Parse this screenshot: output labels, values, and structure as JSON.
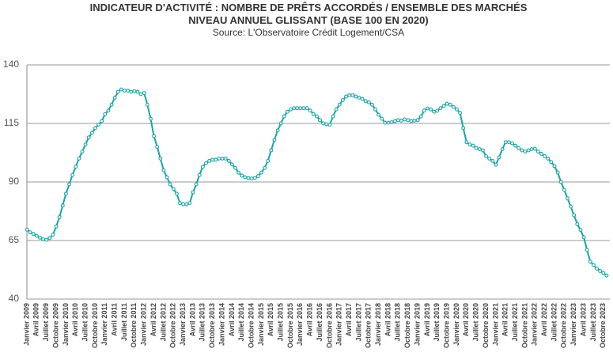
{
  "chart_data": {
    "type": "line",
    "title": "INDICATEUR D'ACTIVITÉ : NOMBRE DE PRÊTS ACCORDÉS / ENSEMBLE DES MARCHÉS",
    "subtitle": "NIVEAU ANNUEL GLISSANT (BASE 100 EN 2020)",
    "source": "Source: L'Observatoire Crédit Logement/CSA",
    "color": "#1aa5a5",
    "grid": true,
    "ylim": [
      40,
      140
    ],
    "yticks": [
      40,
      65,
      90,
      115,
      140
    ],
    "categories": [
      "Janvier 2009",
      null,
      null,
      "Avril 2009",
      null,
      null,
      "Juillet 2009",
      null,
      null,
      "Octobre 2009",
      null,
      null,
      "Janvier 2010",
      null,
      null,
      "Avril 2010",
      null,
      null,
      "Juillet 2010",
      null,
      null,
      "Octobre 2010",
      null,
      null,
      "Janvier 2011",
      null,
      null,
      "Avril 2011",
      null,
      null,
      "Juillet 2011",
      null,
      null,
      "Octobre 2011",
      null,
      null,
      "Janvier 2012",
      null,
      null,
      "Avril 2012",
      null,
      null,
      "Juillet 2012",
      null,
      null,
      "Octobre 2012",
      null,
      null,
      "Janvier 2013",
      null,
      null,
      "Avril 2013",
      null,
      null,
      "Juillet 2013",
      null,
      null,
      "Octobre 2013",
      null,
      null,
      "Janvier 2014",
      null,
      null,
      "Avril 2014",
      null,
      null,
      "Juillet 2014",
      null,
      null,
      "Octobre 2014",
      null,
      null,
      "Janvier 2015",
      null,
      null,
      "Avril 2015",
      null,
      null,
      "Juillet 2015",
      null,
      null,
      "Octobre 2015",
      null,
      null,
      "Janvier 2016",
      null,
      null,
      "Avril 2016",
      null,
      null,
      "Juillet 2016",
      null,
      null,
      "Octobre 2016",
      null,
      null,
      "Janvier 2017",
      null,
      null,
      "Avril 2017",
      null,
      null,
      "Juillet 2017",
      null,
      null,
      "Octobre 2017",
      null,
      null,
      "Janvier 2018",
      null,
      null,
      "Avril 2018",
      null,
      null,
      "Juillet 2018",
      null,
      null,
      "Octobre 2018",
      null,
      null,
      "Janvier 2019",
      null,
      null,
      "Avril 2019",
      null,
      null,
      "Juillet 2019",
      null,
      null,
      "Octobre 2019",
      null,
      null,
      "Janvier 2020",
      null,
      null,
      "Avril 2020",
      null,
      null,
      "Juillet 2020",
      null,
      null,
      "Octobre 2020",
      null,
      null,
      "Janvier 2021",
      null,
      null,
      "Avril 2021",
      null,
      null,
      "Juillet 2021",
      null,
      null,
      "Octobre 2021",
      null,
      null,
      "Janvier 2022",
      null,
      null,
      "Avril 2022",
      null,
      null,
      "Juillet 2022",
      null,
      null,
      "Octobre 2022",
      null,
      null,
      "Janvier 2023",
      null,
      null,
      "Avril 2023",
      null,
      null,
      "Juillet 2023",
      null,
      null,
      "Octobre 2023",
      null
    ],
    "values": [
      69.7,
      68.5,
      67.8,
      67,
      66.2,
      65.5,
      65.3,
      66,
      67.5,
      71,
      75,
      80,
      85,
      89,
      93,
      96.5,
      100,
      103,
      106,
      109,
      111,
      113,
      114.5,
      116,
      119,
      120.5,
      123,
      126,
      128.5,
      129.5,
      129,
      129,
      128.5,
      128.8,
      128.5,
      127.5,
      128,
      123,
      117,
      109.6,
      105,
      100,
      95,
      92,
      89,
      87,
      85,
      81,
      80.5,
      80.5,
      81,
      85.6,
      89,
      93,
      96.5,
      98,
      99,
      99.5,
      99.5,
      100,
      100,
      100,
      99,
      97.5,
      96,
      94,
      92.7,
      92,
      91.7,
      91.5,
      91.7,
      92.5,
      94,
      96,
      99,
      103.5,
      108,
      112,
      115,
      118,
      120,
      121,
      121.5,
      121.5,
      121.5,
      121.5,
      121.5,
      120.5,
      119,
      118,
      116.4,
      115,
      114.7,
      114.5,
      118,
      121,
      123,
      125,
      126.5,
      127,
      127,
      126.5,
      126,
      125.5,
      124.5,
      124,
      123,
      121,
      118.7,
      117,
      115.3,
      115.3,
      115.5,
      116,
      116.4,
      116.2,
      116.7,
      116.4,
      116,
      116.2,
      116.4,
      118,
      120.5,
      121.4,
      121,
      120,
      120.4,
      121.5,
      122.5,
      123.4,
      123,
      122,
      121,
      119.5,
      113,
      107,
      106,
      105.5,
      104.5,
      104,
      103.5,
      101,
      100,
      99,
      97.4,
      100.5,
      104,
      107,
      107,
      106.5,
      105.5,
      104.5,
      103.5,
      103,
      103.5,
      104,
      104.2,
      103,
      102,
      101,
      100,
      98.5,
      96.8,
      94,
      90,
      86.6,
      83,
      79.5,
      75.8,
      72,
      69.5,
      66.4,
      61,
      56,
      54.5,
      53,
      52,
      51.1,
      50.1
    ]
  }
}
